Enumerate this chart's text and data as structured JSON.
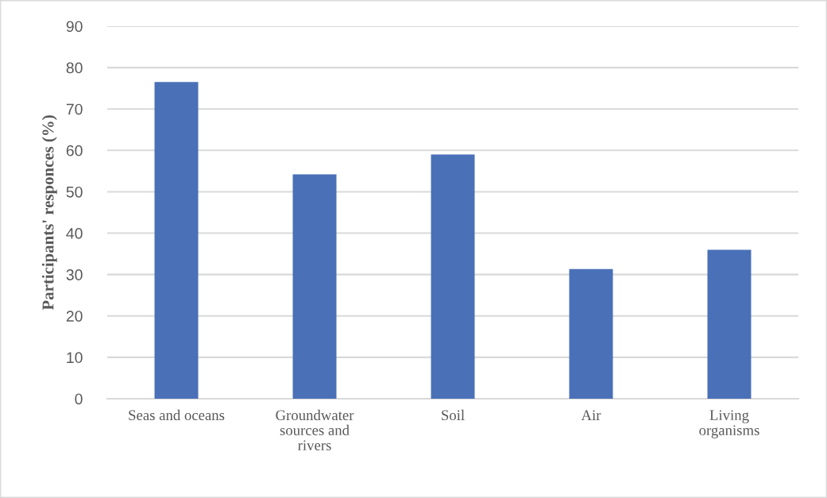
{
  "chart_data": {
    "type": "bar",
    "ylabel": "Participants' responces (%)",
    "categories": [
      "Seas and oceans",
      "Groundwater\nsources and\nrivers",
      "Soil",
      "Air",
      "Living\norganisms"
    ],
    "values": [
      76.5,
      54.2,
      59.0,
      31.3,
      36.0
    ],
    "color": "#4a70b7",
    "ylim": [
      0,
      90
    ],
    "yticks": [
      0,
      10,
      20,
      30,
      40,
      50,
      60,
      70,
      80,
      90
    ],
    "grid": "y"
  }
}
